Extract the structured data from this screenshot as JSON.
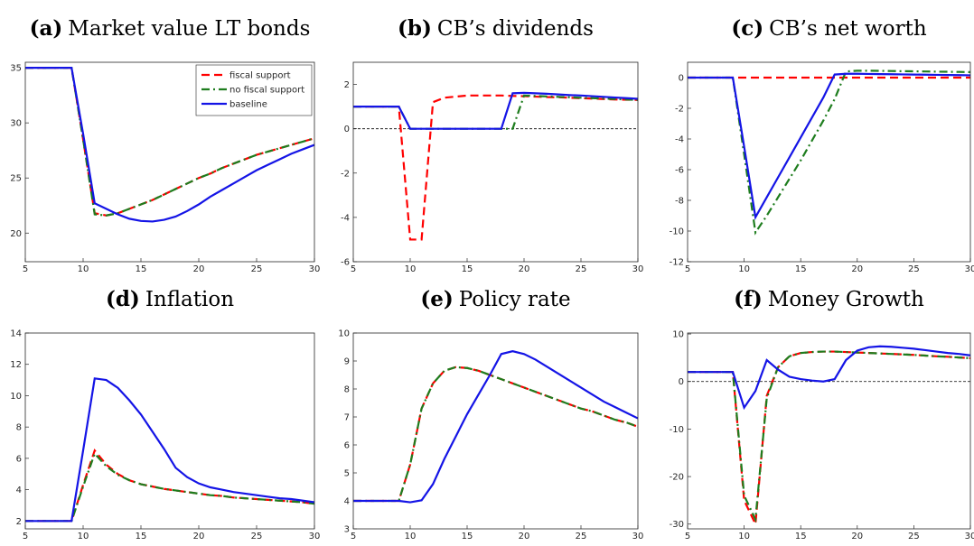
{
  "chart_data": [
    {
      "type": "line",
      "label": "(a)",
      "title": "Market value LT bonds",
      "x": [
        5,
        6,
        7,
        8,
        9,
        10,
        11,
        12,
        13,
        14,
        15,
        16,
        17,
        18,
        19,
        20,
        21,
        22,
        23,
        24,
        25,
        26,
        27,
        28,
        29,
        30
      ],
      "xlim": [
        5,
        30
      ],
      "xticks": [
        5,
        10,
        15,
        20,
        25,
        30
      ],
      "ylim": [
        17.4,
        35.5
      ],
      "yticks": [
        20,
        25,
        30,
        35
      ],
      "legend": "upper right",
      "series": [
        {
          "name": "fiscal support",
          "color": "#ff0000",
          "dash": "dashed",
          "values": [
            35,
            35,
            35,
            35,
            35,
            28.5,
            21.8,
            21.6,
            21.8,
            22.2,
            22.6,
            23.0,
            23.5,
            24.0,
            24.5,
            25.0,
            25.4,
            25.9,
            26.3,
            26.7,
            27.1,
            27.4,
            27.7,
            28.0,
            28.3,
            28.6
          ]
        },
        {
          "name": "no fiscal support",
          "color": "#1e7d1e",
          "dash": "dashdot",
          "values": [
            35,
            35,
            35,
            35,
            35,
            28.5,
            21.7,
            21.6,
            21.8,
            22.2,
            22.6,
            23.0,
            23.5,
            24.0,
            24.5,
            25.0,
            25.4,
            25.9,
            26.3,
            26.7,
            27.1,
            27.4,
            27.7,
            28.0,
            28.3,
            28.6
          ]
        },
        {
          "name": "baseline",
          "color": "#1414e6",
          "dash": "solid",
          "values": [
            35,
            35,
            35,
            35,
            35,
            29,
            22.7,
            22.2,
            21.7,
            21.3,
            21.1,
            21.05,
            21.2,
            21.5,
            22.0,
            22.6,
            23.3,
            23.9,
            24.5,
            25.1,
            25.7,
            26.2,
            26.7,
            27.2,
            27.6,
            28.0
          ]
        }
      ]
    },
    {
      "type": "line",
      "label": "(b)",
      "title": "CB’s dividends",
      "x": [
        5,
        6,
        7,
        8,
        9,
        10,
        11,
        12,
        13,
        14,
        15,
        16,
        17,
        18,
        19,
        20,
        21,
        22,
        23,
        24,
        25,
        26,
        27,
        28,
        29,
        30
      ],
      "xlim": [
        5,
        30
      ],
      "xticks": [
        5,
        10,
        15,
        20,
        25,
        30
      ],
      "ylim": [
        -6,
        3
      ],
      "yticks": [
        -6,
        -4,
        -2,
        0,
        2
      ],
      "reference_line": 0,
      "series": [
        {
          "color": "#ff0000",
          "dash": "dashed",
          "values": [
            1,
            1,
            1,
            1,
            1,
            -5,
            -5,
            1.2,
            1.4,
            1.45,
            1.5,
            1.5,
            1.5,
            1.5,
            1.48,
            1.47,
            1.45,
            1.43,
            1.42,
            1.4,
            1.38,
            1.36,
            1.34,
            1.32,
            1.31,
            1.3
          ]
        },
        {
          "color": "#1e7d1e",
          "dash": "dashdot",
          "values": [
            1,
            1,
            1,
            1,
            1,
            0,
            0,
            0,
            0,
            0,
            0,
            0,
            0,
            0,
            0,
            1.5,
            1.48,
            1.46,
            1.44,
            1.42,
            1.4,
            1.38,
            1.36,
            1.34,
            1.32,
            1.3
          ]
        },
        {
          "color": "#1414e6",
          "dash": "solid",
          "values": [
            1,
            1,
            1,
            1,
            1,
            0,
            0,
            0,
            0,
            0,
            0,
            0,
            0,
            0,
            1.6,
            1.62,
            1.6,
            1.58,
            1.55,
            1.52,
            1.5,
            1.47,
            1.44,
            1.41,
            1.38,
            1.35
          ]
        }
      ]
    },
    {
      "type": "line",
      "label": "(c)",
      "title": "CB’s net worth",
      "x": [
        5,
        6,
        7,
        8,
        9,
        10,
        11,
        12,
        13,
        14,
        15,
        16,
        17,
        18,
        19,
        20,
        21,
        22,
        23,
        24,
        25,
        26,
        27,
        28,
        29,
        30
      ],
      "xlim": [
        5,
        30
      ],
      "xticks": [
        5,
        10,
        15,
        20,
        25,
        30
      ],
      "ylim": [
        -12,
        1
      ],
      "yticks": [
        -12,
        -10,
        -8,
        -6,
        -4,
        -2,
        0
      ],
      "series": [
        {
          "color": "#ff0000",
          "dash": "dashed",
          "values": [
            0,
            0,
            0,
            0,
            0,
            0,
            0,
            0,
            0,
            0,
            0,
            0,
            0,
            0,
            0,
            0,
            0,
            0,
            0,
            0,
            0,
            0,
            0,
            0,
            0,
            0
          ]
        },
        {
          "color": "#1e7d1e",
          "dash": "dashdot",
          "values": [
            0,
            0,
            0,
            0,
            0,
            -5,
            -10.1,
            -9.0,
            -7.8,
            -6.6,
            -5.4,
            -4.1,
            -2.8,
            -1.4,
            0.4,
            0.45,
            0.45,
            0.44,
            0.43,
            0.42,
            0.41,
            0.4,
            0.39,
            0.38,
            0.37,
            0.36
          ]
        },
        {
          "color": "#1414e6",
          "dash": "solid",
          "values": [
            0,
            0,
            0,
            0,
            0,
            -4.5,
            -9.1,
            -7.8,
            -6.5,
            -5.2,
            -3.9,
            -2.6,
            -1.3,
            0.2,
            0.25,
            0.25,
            0.24,
            0.23,
            0.22,
            0.21,
            0.2,
            0.19,
            0.18,
            0.17,
            0.16,
            0.15
          ]
        }
      ]
    },
    {
      "type": "line",
      "label": "(d)",
      "title": "Inflation",
      "x": [
        5,
        6,
        7,
        8,
        9,
        10,
        11,
        12,
        13,
        14,
        15,
        16,
        17,
        18,
        19,
        20,
        21,
        22,
        23,
        24,
        25,
        26,
        27,
        28,
        29,
        30
      ],
      "xlim": [
        5,
        30
      ],
      "xticks": [
        5,
        10,
        15,
        20,
        25,
        30
      ],
      "ylim": [
        1.5,
        14
      ],
      "yticks": [
        2,
        4,
        6,
        8,
        10,
        12,
        14
      ],
      "series": [
        {
          "color": "#ff0000",
          "dash": "dashed",
          "values": [
            2,
            2,
            2,
            2,
            2,
            4.3,
            6.5,
            5.6,
            5.0,
            4.6,
            4.35,
            4.2,
            4.05,
            3.95,
            3.85,
            3.75,
            3.65,
            3.6,
            3.5,
            3.45,
            3.4,
            3.35,
            3.3,
            3.25,
            3.2,
            3.1
          ]
        },
        {
          "color": "#1e7d1e",
          "dash": "dashdot",
          "values": [
            2,
            2,
            2,
            2,
            2,
            4.2,
            6.3,
            5.5,
            4.95,
            4.6,
            4.35,
            4.2,
            4.05,
            3.95,
            3.85,
            3.75,
            3.65,
            3.6,
            3.5,
            3.45,
            3.4,
            3.35,
            3.3,
            3.25,
            3.2,
            3.1
          ]
        },
        {
          "color": "#1414e6",
          "dash": "solid",
          "values": [
            2,
            2,
            2,
            2,
            2,
            6.5,
            11.1,
            11.0,
            10.5,
            9.7,
            8.8,
            7.7,
            6.6,
            5.4,
            4.8,
            4.4,
            4.15,
            4.0,
            3.85,
            3.75,
            3.65,
            3.55,
            3.45,
            3.4,
            3.3,
            3.2
          ]
        }
      ]
    },
    {
      "type": "line",
      "label": "(e)",
      "title": "Policy rate",
      "x": [
        5,
        6,
        7,
        8,
        9,
        10,
        11,
        12,
        13,
        14,
        15,
        16,
        17,
        18,
        19,
        20,
        21,
        22,
        23,
        24,
        25,
        26,
        27,
        28,
        29,
        30
      ],
      "xlim": [
        5,
        30
      ],
      "xticks": [
        5,
        10,
        15,
        20,
        25,
        30
      ],
      "ylim": [
        3,
        10
      ],
      "yticks": [
        3,
        4,
        5,
        6,
        7,
        8,
        9,
        10
      ],
      "series": [
        {
          "color": "#ff0000",
          "dash": "dashed",
          "values": [
            4,
            4,
            4,
            4,
            4,
            5.3,
            7.3,
            8.2,
            8.65,
            8.78,
            8.75,
            8.65,
            8.5,
            8.35,
            8.2,
            8.05,
            7.9,
            7.75,
            7.6,
            7.45,
            7.3,
            7.2,
            7.05,
            6.9,
            6.8,
            6.65
          ]
        },
        {
          "color": "#1e7d1e",
          "dash": "dashdot",
          "values": [
            4,
            4,
            4,
            4,
            4,
            5.3,
            7.3,
            8.2,
            8.65,
            8.78,
            8.75,
            8.65,
            8.5,
            8.35,
            8.2,
            8.05,
            7.9,
            7.75,
            7.6,
            7.45,
            7.3,
            7.2,
            7.05,
            6.9,
            6.8,
            6.65
          ]
        },
        {
          "color": "#1414e6",
          "dash": "solid",
          "values": [
            4,
            4,
            4,
            4,
            4,
            3.95,
            4.02,
            4.6,
            5.5,
            6.3,
            7.1,
            7.8,
            8.5,
            9.25,
            9.35,
            9.25,
            9.05,
            8.8,
            8.55,
            8.3,
            8.05,
            7.8,
            7.55,
            7.35,
            7.15,
            6.95
          ]
        }
      ]
    },
    {
      "type": "line",
      "label": "(f)",
      "title": "Money Growth",
      "x": [
        5,
        6,
        7,
        8,
        9,
        10,
        11,
        12,
        13,
        14,
        15,
        16,
        17,
        18,
        19,
        20,
        21,
        22,
        23,
        24,
        25,
        26,
        27,
        28,
        29,
        30
      ],
      "xlim": [
        5,
        30
      ],
      "xticks": [
        5,
        10,
        15,
        20,
        25,
        30
      ],
      "ylim": [
        -31,
        10.2
      ],
      "yticks": [
        -30,
        -20,
        -10,
        0,
        10
      ],
      "reference_line": 0,
      "series": [
        {
          "color": "#ff0000",
          "dash": "dashed",
          "values": [
            2,
            2,
            2,
            2,
            2,
            -25,
            -30,
            -3,
            3,
            5.3,
            6,
            6.2,
            6.3,
            6.3,
            6.2,
            6.1,
            6.0,
            5.9,
            5.8,
            5.7,
            5.6,
            5.45,
            5.3,
            5.2,
            5.05,
            4.9
          ]
        },
        {
          "color": "#1e7d1e",
          "dash": "dashdot",
          "values": [
            2,
            2,
            2,
            2,
            2,
            -24,
            -29,
            -3.5,
            3,
            5.3,
            6,
            6.2,
            6.3,
            6.3,
            6.2,
            6.1,
            6.0,
            5.9,
            5.8,
            5.7,
            5.6,
            5.45,
            5.3,
            5.2,
            5.05,
            4.9
          ]
        },
        {
          "color": "#1414e6",
          "dash": "solid",
          "values": [
            2,
            2,
            2,
            2,
            2,
            -5.5,
            -2,
            4.5,
            2.5,
            1.0,
            0.5,
            0.2,
            0,
            0.5,
            4.5,
            6.5,
            7.2,
            7.4,
            7.3,
            7.1,
            6.9,
            6.6,
            6.3,
            6.0,
            5.8,
            5.5
          ]
        }
      ]
    }
  ]
}
